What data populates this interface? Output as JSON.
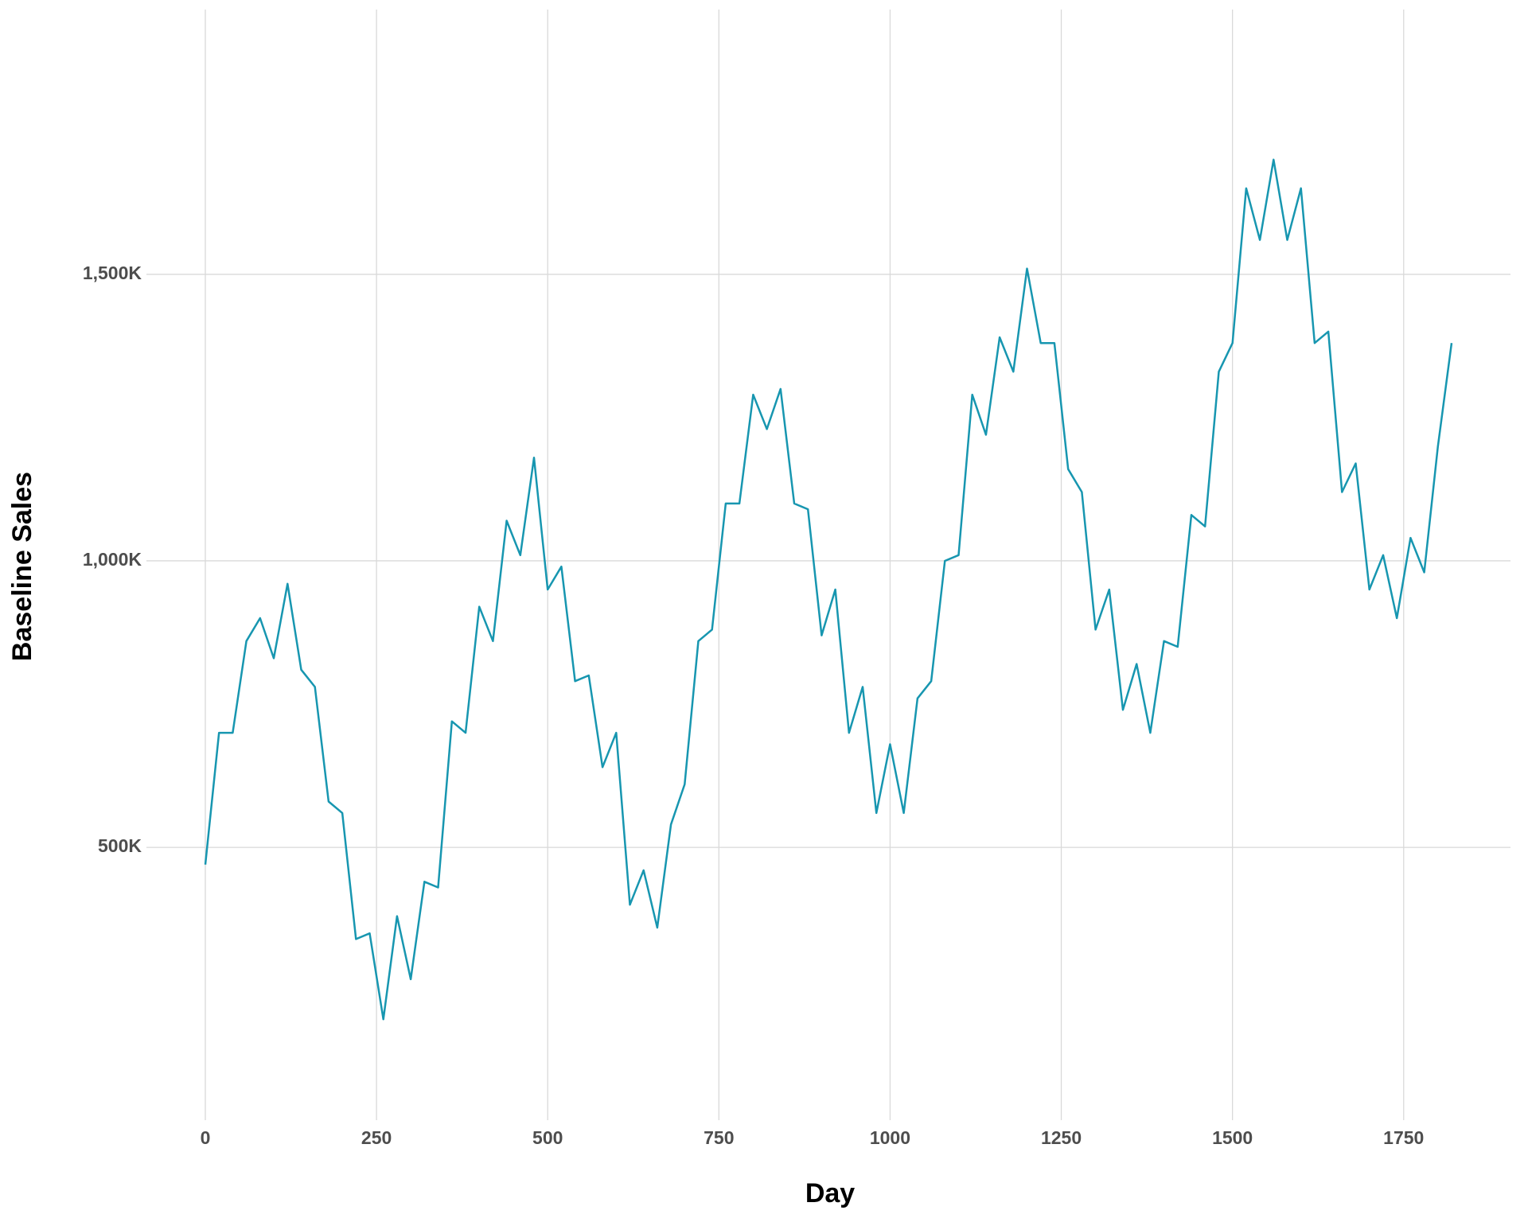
{
  "chart_data": {
    "type": "line",
    "x_label": "Day",
    "y_label": "Baseline Sales",
    "x": [
      0,
      20,
      40,
      60,
      80,
      100,
      120,
      140,
      160,
      180,
      200,
      220,
      240,
      260,
      280,
      300,
      320,
      340,
      360,
      380,
      400,
      420,
      440,
      460,
      480,
      500,
      520,
      540,
      560,
      580,
      600,
      620,
      640,
      660,
      680,
      700,
      720,
      740,
      760,
      780,
      800,
      820,
      840,
      860,
      880,
      900,
      920,
      940,
      960,
      980,
      1000,
      1020,
      1040,
      1060,
      1080,
      1100,
      1120,
      1140,
      1160,
      1180,
      1200,
      1220,
      1240,
      1260,
      1280,
      1300,
      1320,
      1340,
      1360,
      1380,
      1400,
      1420,
      1440,
      1460,
      1480,
      1500,
      1520,
      1540,
      1560,
      1580,
      1600,
      1620,
      1640,
      1660,
      1680,
      1700,
      1720,
      1740,
      1760,
      1780,
      1800,
      1820
    ],
    "series": [
      {
        "color": "#1796b0",
        "values": [
          470000,
          700000,
          700000,
          860000,
          900000,
          830000,
          960000,
          810000,
          780000,
          580000,
          560000,
          340000,
          350000,
          200000,
          380000,
          270000,
          440000,
          430000,
          720000,
          700000,
          920000,
          860000,
          1070000,
          1010000,
          1180000,
          950000,
          990000,
          790000,
          800000,
          640000,
          700000,
          400000,
          460000,
          360000,
          540000,
          610000,
          860000,
          880000,
          1100000,
          1100000,
          1290000,
          1230000,
          1300000,
          1100000,
          1090000,
          870000,
          950000,
          700000,
          780000,
          560000,
          680000,
          560000,
          760000,
          790000,
          1000000,
          1010000,
          1290000,
          1220000,
          1390000,
          1330000,
          1510000,
          1380000,
          1380000,
          1160000,
          1120000,
          880000,
          950000,
          740000,
          820000,
          700000,
          860000,
          850000,
          1080000,
          1060000,
          1330000,
          1380000,
          1650000,
          1560000,
          1700000,
          1560000,
          1650000,
          1380000,
          1400000,
          1120000,
          1170000,
          950000,
          1010000,
          900000,
          1040000,
          980000,
          1200000,
          1380000
        ]
      }
    ],
    "xlim": [
      -86,
      1906
    ],
    "ylim": [
      24000,
      1962000
    ],
    "xticks": [
      0,
      250,
      500,
      750,
      1000,
      1250,
      1500,
      1750
    ],
    "yticks": [
      {
        "value": 500000,
        "label": "500K"
      },
      {
        "value": 1000000,
        "label": "1,000K"
      },
      {
        "value": 1500000,
        "label": "1,500K"
      }
    ],
    "grid": true
  }
}
